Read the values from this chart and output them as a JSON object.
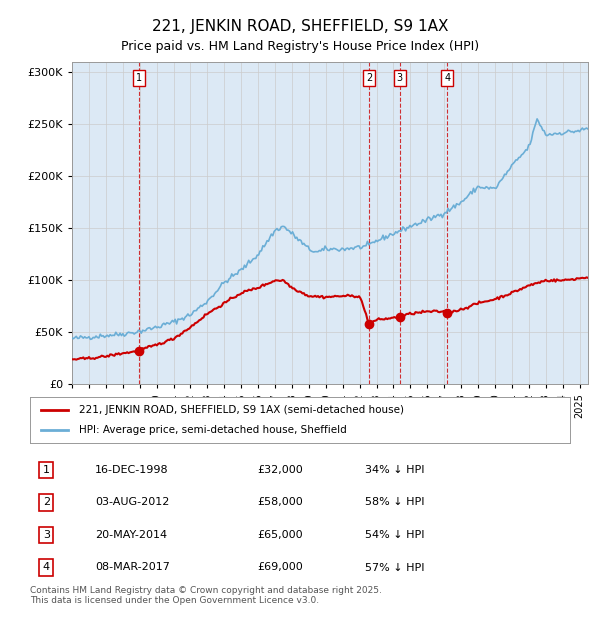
{
  "title": "221, JENKIN ROAD, SHEFFIELD, S9 1AX",
  "subtitle": "Price paid vs. HM Land Registry's House Price Index (HPI)",
  "bg_color": "#dce9f5",
  "plot_bg_color": "#dce9f5",
  "hpi_color": "#6baed6",
  "price_color": "#cc0000",
  "sale_marker_color": "#cc0000",
  "vline_color": "#cc0000",
  "grid_color": "#aaaaaa",
  "legend1": "221, JENKIN ROAD, SHEFFIELD, S9 1AX (semi-detached house)",
  "legend2": "HPI: Average price, semi-detached house, Sheffield",
  "footer": "Contains HM Land Registry data © Crown copyright and database right 2025.\nThis data is licensed under the Open Government Licence v3.0.",
  "sales": [
    {
      "num": 1,
      "date_label": "16-DEC-1998",
      "price": 32000,
      "pct": "34% ↓ HPI",
      "year": 1998.96
    },
    {
      "num": 2,
      "date_label": "03-AUG-2012",
      "price": 58000,
      "pct": "58% ↓ HPI",
      "year": 2012.58
    },
    {
      "num": 3,
      "date_label": "20-MAY-2014",
      "price": 65000,
      "pct": "54% ↓ HPI",
      "year": 2014.38
    },
    {
      "num": 4,
      "date_label": "08-MAR-2017",
      "price": 69000,
      "pct": "57% ↓ HPI",
      "year": 2017.18
    }
  ],
  "ylim": [
    0,
    310000
  ],
  "xlim_start": 1995.0,
  "xlim_end": 2025.5,
  "yticks": [
    0,
    50000,
    100000,
    150000,
    200000,
    250000,
    300000
  ],
  "ytick_labels": [
    "£0",
    "£50K",
    "£100K",
    "£150K",
    "£200K",
    "£250K",
    "£300K"
  ]
}
